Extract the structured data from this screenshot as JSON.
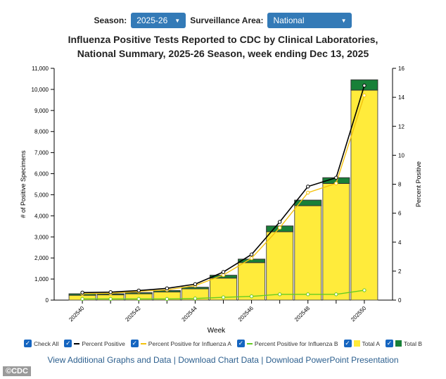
{
  "controls": {
    "season_label": "Season:",
    "season_value": "2025-26",
    "area_label": "Surveillance Area:",
    "area_value": "National"
  },
  "title_line1": "Influenza Positive Tests Reported to CDC by Clinical Laboratories,",
  "title_line2": "National Summary, 2025-26 Season, week ending Dec 13, 2025",
  "chart_data": {
    "type": "bar",
    "xlabel": "Week",
    "ylabel": "# of Positive Specimens",
    "y2label": "Percent Positive",
    "ylim": [
      0,
      11000
    ],
    "y2lim": [
      0,
      16
    ],
    "categories": [
      "202540",
      "202541",
      "202542",
      "202543",
      "202544",
      "202545",
      "202546",
      "202547",
      "202548",
      "202549",
      "202550"
    ],
    "tick_labels": [
      "202540",
      "202542",
      "202544",
      "202546",
      "202548",
      "202550"
    ],
    "y_ticks": [
      "0",
      "1,000",
      "2,000",
      "3,000",
      "4,000",
      "5,000",
      "6,000",
      "7,000",
      "8,000",
      "9,000",
      "10,000",
      "11,000"
    ],
    "y2_ticks": [
      "0",
      "2",
      "4",
      "6",
      "8",
      "10",
      "12",
      "14",
      "16"
    ],
    "bar_series": [
      {
        "name": "Total A",
        "color": "#ffeb3b",
        "values": [
          230,
          250,
          300,
          390,
          535,
          1045,
          1780,
          3245,
          4480,
          5535,
          9965
        ]
      },
      {
        "name": "Total B",
        "color": "#188038",
        "values": [
          70,
          50,
          55,
          65,
          75,
          135,
          165,
          275,
          265,
          275,
          490
        ]
      }
    ],
    "line_series": [
      {
        "name": "Percent Positive",
        "color": "#000000",
        "values": [
          0.52,
          0.55,
          0.66,
          0.81,
          1.1,
          1.94,
          3.15,
          5.4,
          7.84,
          8.45,
          14.81
        ]
      },
      {
        "name": "Percent Positive for Influenza A",
        "color": "#f4c20d",
        "values": [
          0.44,
          0.47,
          0.6,
          0.71,
          1.0,
          1.73,
          2.89,
          5.0,
          7.42,
          8.06,
          14.13
        ]
      },
      {
        "name": "Percent Positive for Influenza B",
        "color": "#66cc22",
        "values": [
          0.08,
          0.08,
          0.08,
          0.08,
          0.11,
          0.19,
          0.26,
          0.4,
          0.4,
          0.4,
          0.68
        ]
      }
    ],
    "legend_placement": "bottom"
  },
  "legend": [
    {
      "label": "Check All",
      "swatch": "none"
    },
    {
      "label": "Percent Positive",
      "swatch": "line",
      "color": "#000000"
    },
    {
      "label": "Percent Positive for Influenza A",
      "swatch": "line",
      "color": "#f4c20d"
    },
    {
      "label": "Percent Positive for Influenza B",
      "swatch": "line",
      "color": "#66cc22"
    },
    {
      "label": "Total A",
      "swatch": "box",
      "color": "#ffeb3b"
    },
    {
      "label": "Total B",
      "swatch": "box",
      "color": "#188038"
    }
  ],
  "links": {
    "l1": "View Additional Graphs and Data",
    "l2": "Download Chart Data",
    "l3": "Download PowerPoint Presentation",
    "sep": "|"
  },
  "watermark": "©CDC"
}
